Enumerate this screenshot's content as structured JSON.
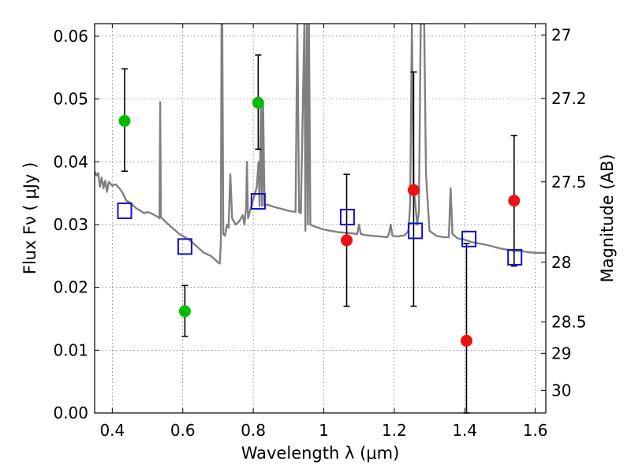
{
  "chart_data": {
    "type": "scatter",
    "xlabel": "Wavelength  λ (μm)",
    "ylabel": "Flux  Fν  ( μJy )",
    "ylabel_right": "Magnitude (AB)",
    "xlim": [
      0.35,
      1.63
    ],
    "ylim": [
      0.0,
      0.062
    ],
    "grid": true,
    "x_ticks": [
      {
        "value": 0.4,
        "label": "0.4"
      },
      {
        "value": 0.6,
        "label": "0.6"
      },
      {
        "value": 0.8,
        "label": "0.8"
      },
      {
        "value": 1.0,
        "label": "1"
      },
      {
        "value": 1.2,
        "label": "1.2"
      },
      {
        "value": 1.4,
        "label": "1.4"
      },
      {
        "value": 1.6,
        "label": "1.6"
      }
    ],
    "y_ticks": [
      {
        "value": 0.0,
        "label": "0.00"
      },
      {
        "value": 0.01,
        "label": "0.01"
      },
      {
        "value": 0.02,
        "label": "0.02"
      },
      {
        "value": 0.03,
        "label": "0.03"
      },
      {
        "value": 0.04,
        "label": "0.04"
      },
      {
        "value": 0.05,
        "label": "0.05"
      },
      {
        "value": 0.06,
        "label": "0.06"
      }
    ],
    "right_ticks": [
      {
        "flux": 0.0602,
        "label": "27"
      },
      {
        "flux": 0.0501,
        "label": "27.2"
      },
      {
        "flux": 0.0368,
        "label": "27.5"
      },
      {
        "flux": 0.024,
        "label": "28"
      },
      {
        "flux": 0.0145,
        "label": "28.5"
      },
      {
        "flux": 0.0095,
        "label": "29"
      },
      {
        "flux": 0.0036,
        "label": "30"
      }
    ],
    "series": [
      {
        "marker": "circle",
        "color": "#00bb00",
        "points": [
          {
            "x": 0.435,
            "y": 0.0465,
            "err_lo": 0.0385,
            "err_hi": 0.0548
          },
          {
            "x": 0.606,
            "y": 0.0162,
            "err_lo": 0.0122,
            "err_hi": 0.0203
          },
          {
            "x": 0.814,
            "y": 0.0494,
            "err_lo": 0.042,
            "err_hi": 0.057
          }
        ]
      },
      {
        "marker": "circle",
        "color": "#ee1111",
        "points": [
          {
            "x": 1.065,
            "y": 0.0275,
            "err_lo": 0.017,
            "err_hi": 0.038
          },
          {
            "x": 1.255,
            "y": 0.0355,
            "err_lo": 0.017,
            "err_hi": 0.0543
          },
          {
            "x": 1.405,
            "y": 0.0115,
            "err_lo": 0.0,
            "err_hi": 0.027
          },
          {
            "x": 1.54,
            "y": 0.0338,
            "err_lo": 0.0234,
            "err_hi": 0.0442
          }
        ]
      },
      {
        "marker": "square-open",
        "color": "#1111cc",
        "points": [
          {
            "x": 0.435,
            "y": 0.0322
          },
          {
            "x": 0.606,
            "y": 0.0265
          },
          {
            "x": 0.814,
            "y": 0.0337
          },
          {
            "x": 1.067,
            "y": 0.0312
          },
          {
            "x": 1.26,
            "y": 0.029
          },
          {
            "x": 1.412,
            "y": 0.0277
          },
          {
            "x": 1.542,
            "y": 0.0248
          }
        ]
      }
    ],
    "model_spectrum": {
      "color": "#808080",
      "points": [
        [
          0.35,
          0.0385
        ],
        [
          0.355,
          0.0378
        ],
        [
          0.36,
          0.0382
        ],
        [
          0.365,
          0.036
        ],
        [
          0.37,
          0.0375
        ],
        [
          0.375,
          0.0358
        ],
        [
          0.38,
          0.037
        ],
        [
          0.385,
          0.0352
        ],
        [
          0.39,
          0.0368
        ],
        [
          0.4,
          0.0362
        ],
        [
          0.41,
          0.0364
        ],
        [
          0.42,
          0.0358
        ],
        [
          0.43,
          0.035
        ],
        [
          0.44,
          0.0338
        ],
        [
          0.45,
          0.0335
        ],
        [
          0.46,
          0.033
        ],
        [
          0.47,
          0.0325
        ],
        [
          0.48,
          0.0322
        ],
        [
          0.49,
          0.0318
        ],
        [
          0.5,
          0.032
        ],
        [
          0.51,
          0.0318
        ],
        [
          0.52,
          0.0315
        ],
        [
          0.53,
          0.0312
        ],
        [
          0.534,
          0.031
        ],
        [
          0.536,
          0.0495
        ],
        [
          0.538,
          0.0312
        ],
        [
          0.55,
          0.0305
        ],
        [
          0.56,
          0.03
        ],
        [
          0.57,
          0.0295
        ],
        [
          0.58,
          0.029
        ],
        [
          0.59,
          0.0285
        ],
        [
          0.6,
          0.0282
        ],
        [
          0.62,
          0.0275
        ],
        [
          0.64,
          0.0265
        ],
        [
          0.66,
          0.0255
        ],
        [
          0.68,
          0.025
        ],
        [
          0.69,
          0.0245
        ],
        [
          0.7,
          0.024
        ],
        [
          0.705,
          0.0238
        ],
        [
          0.708,
          0.027
        ],
        [
          0.71,
          0.062
        ],
        [
          0.712,
          0.062
        ],
        [
          0.715,
          0.0285
        ],
        [
          0.72,
          0.0282
        ],
        [
          0.725,
          0.03
        ],
        [
          0.73,
          0.0295
        ],
        [
          0.735,
          0.038
        ],
        [
          0.74,
          0.031
        ],
        [
          0.75,
          0.03
        ],
        [
          0.76,
          0.0305
        ],
        [
          0.77,
          0.0315
        ],
        [
          0.775,
          0.03
        ],
        [
          0.78,
          0.033
        ],
        [
          0.782,
          0.04
        ],
        [
          0.785,
          0.031
        ],
        [
          0.79,
          0.032
        ],
        [
          0.8,
          0.034
        ],
        [
          0.81,
          0.036
        ],
        [
          0.815,
          0.04
        ],
        [
          0.818,
          0.033
        ],
        [
          0.822,
          0.05
        ],
        [
          0.825,
          0.033
        ],
        [
          0.828,
          0.049
        ],
        [
          0.832,
          0.033
        ],
        [
          0.84,
          0.0332
        ],
        [
          0.86,
          0.0328
        ],
        [
          0.88,
          0.0325
        ],
        [
          0.9,
          0.0322
        ],
        [
          0.92,
          0.032
        ],
        [
          0.925,
          0.062
        ],
        [
          0.93,
          0.032
        ],
        [
          0.935,
          0.0318
        ],
        [
          0.945,
          0.062
        ],
        [
          0.948,
          0.029
        ],
        [
          0.952,
          0.062
        ],
        [
          0.955,
          0.03
        ],
        [
          0.958,
          0.062
        ],
        [
          0.962,
          0.03
        ],
        [
          0.97,
          0.0298
        ],
        [
          0.98,
          0.0296
        ],
        [
          1.0,
          0.0292
        ],
        [
          1.02,
          0.029
        ],
        [
          1.04,
          0.0288
        ],
        [
          1.06,
          0.0287
        ],
        [
          1.08,
          0.0286
        ],
        [
          1.095,
          0.0285
        ],
        [
          1.1,
          0.03
        ],
        [
          1.105,
          0.0285
        ],
        [
          1.12,
          0.0283
        ],
        [
          1.14,
          0.0282
        ],
        [
          1.16,
          0.0281
        ],
        [
          1.18,
          0.028
        ],
        [
          1.185,
          0.0285
        ],
        [
          1.19,
          0.03
        ],
        [
          1.195,
          0.0282
        ],
        [
          1.21,
          0.0281
        ],
        [
          1.23,
          0.0283
        ],
        [
          1.24,
          0.029
        ],
        [
          1.245,
          0.033
        ],
        [
          1.25,
          0.062
        ],
        [
          1.255,
          0.036
        ],
        [
          1.26,
          0.033
        ],
        [
          1.265,
          0.03
        ],
        [
          1.27,
          0.032
        ],
        [
          1.275,
          0.062
        ],
        [
          1.28,
          0.062
        ],
        [
          1.285,
          0.062
        ],
        [
          1.29,
          0.038
        ],
        [
          1.3,
          0.029
        ],
        [
          1.32,
          0.0282
        ],
        [
          1.34,
          0.028
        ],
        [
          1.355,
          0.028
        ],
        [
          1.36,
          0.0358
        ],
        [
          1.365,
          0.0285
        ],
        [
          1.38,
          0.0278
        ],
        [
          1.4,
          0.0276
        ],
        [
          1.42,
          0.0272
        ],
        [
          1.44,
          0.027
        ],
        [
          1.46,
          0.0268
        ],
        [
          1.48,
          0.0265
        ],
        [
          1.5,
          0.0262
        ],
        [
          1.52,
          0.026
        ],
        [
          1.54,
          0.0258
        ],
        [
          1.56,
          0.0258
        ],
        [
          1.58,
          0.0256
        ],
        [
          1.6,
          0.0255
        ],
        [
          1.63,
          0.0255
        ]
      ]
    }
  }
}
